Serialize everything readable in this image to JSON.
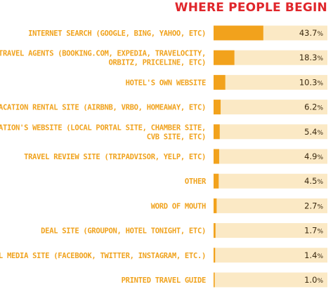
{
  "chart_data": {
    "type": "bar",
    "orientation": "horizontal",
    "title": "WHERE PEOPLE BEGIN",
    "categories": [
      [
        "INTERNET SEARCH (GOOGLE, BING, YAHOO, ETC)"
      ],
      [
        "ONLINE TRAVEL AGENTS (BOOKING.COM, EXPEDIA, TRAVELOCITY,",
        "ORBITZ, PRICELINE, ETC)"
      ],
      [
        "HOTEL'S OWN WEBSITE"
      ],
      [
        "VACATION RENTAL SITE (AIRBNB, VRBO, HOMEAWAY, ETC)"
      ],
      [
        "DESTINATION'S WEBSITE (LOCAL PORTAL SITE, CHAMBER SITE,",
        "CVB SITE, ETC)"
      ],
      [
        "TRAVEL REVIEW SITE (TRIPADVISOR, YELP, ETC)"
      ],
      [
        "OTHER"
      ],
      [
        "WORD OF MOUTH"
      ],
      [
        "DEAL SITE (GROUPON, HOTEL TONIGHT, ETC)"
      ],
      [
        "SOCIAL MEDIA SITE (FACEBOOK, TWITTER, INSTAGRAM, ETC.)"
      ],
      [
        "PRINTED TRAVEL GUIDE"
      ]
    ],
    "values": [
      43.7,
      18.3,
      10.3,
      6.2,
      5.4,
      4.9,
      4.5,
      2.7,
      1.7,
      1.4,
      1.0
    ],
    "value_labels": [
      "43.7",
      "18.3",
      "10.3",
      "6.2",
      "5.4",
      "4.9",
      "4.5",
      "2.7",
      "1.7",
      "1.4",
      "1.0"
    ],
    "unit": "%",
    "xlim": [
      0,
      100
    ],
    "colors": {
      "bar": "#f2a21c",
      "track": "#fbe9c5",
      "label": "#f0a31f",
      "title": "#e0262b",
      "value": "#3b2a10"
    },
    "grid": false,
    "legend": "none"
  }
}
